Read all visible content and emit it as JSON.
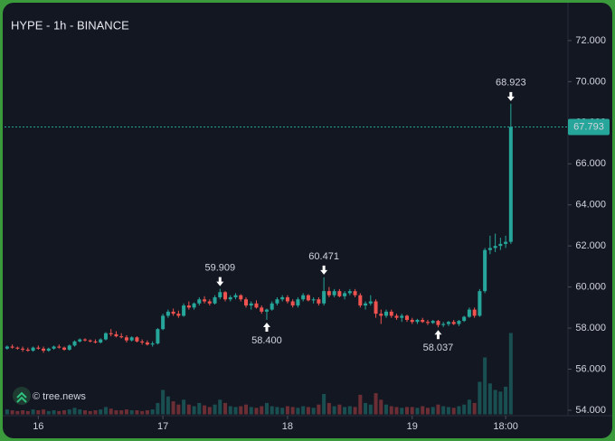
{
  "chart_data": {
    "type": "candlestick",
    "title": "HYPE - 1h - BINANCE",
    "watermark": "© tree.news",
    "up_color": "#26a69a",
    "down_color": "#ef5350",
    "ylim": [
      53.8,
      73.8
    ],
    "yticks": [
      {
        "value": 54,
        "label": "54.000"
      },
      {
        "value": 56,
        "label": "56.000"
      },
      {
        "value": 58,
        "label": "58.000"
      },
      {
        "value": 60,
        "label": "60.000"
      },
      {
        "value": 62,
        "label": "62.000"
      },
      {
        "value": 64,
        "label": "64.000"
      },
      {
        "value": 66,
        "label": "66.000"
      },
      {
        "value": 68,
        "label": "68.000"
      },
      {
        "value": 70,
        "label": "70.000"
      },
      {
        "value": 72,
        "label": "72.000"
      }
    ],
    "xlim": [
      -0.5,
      108
    ],
    "xticks": [
      {
        "value": 6,
        "label": "16"
      },
      {
        "value": 30,
        "label": "17"
      },
      {
        "value": 54,
        "label": "18"
      },
      {
        "value": 78,
        "label": "19"
      },
      {
        "value": 96,
        "label": "18:00"
      }
    ],
    "last": {
      "value": 67.793,
      "label": "67.793"
    },
    "annotations": [
      {
        "at": 41,
        "value": 59.909,
        "label": "59.909"
      },
      {
        "at": 50,
        "value": 58.4,
        "label": "58.400"
      },
      {
        "at": 61,
        "value": 60.471,
        "label": "60.471"
      },
      {
        "at": 83,
        "value": 58.037,
        "label": "58.037"
      },
      {
        "at": 97,
        "value": 68.923,
        "label": "68.923"
      }
    ],
    "ohlc": [
      [
        57.0,
        57.15,
        56.95,
        57.1
      ],
      [
        57.1,
        57.2,
        57.0,
        57.05
      ],
      [
        57.05,
        57.1,
        56.95,
        57.0
      ],
      [
        57.0,
        57.1,
        56.85,
        56.95
      ],
      [
        56.95,
        57.05,
        56.85,
        56.9
      ],
      [
        56.9,
        57.1,
        56.85,
        57.05
      ],
      [
        57.05,
        57.15,
        56.95,
        57.0
      ],
      [
        57.0,
        57.1,
        56.8,
        56.9
      ],
      [
        56.9,
        57.05,
        56.85,
        57.0
      ],
      [
        57.0,
        57.15,
        56.95,
        57.1
      ],
      [
        57.1,
        57.2,
        57.0,
        57.05
      ],
      [
        57.05,
        57.1,
        56.9,
        56.95
      ],
      [
        56.95,
        57.2,
        56.9,
        57.15
      ],
      [
        57.15,
        57.4,
        57.1,
        57.35
      ],
      [
        57.35,
        57.5,
        57.3,
        57.45
      ],
      [
        57.45,
        57.5,
        57.35,
        57.4
      ],
      [
        57.4,
        57.45,
        57.3,
        57.35
      ],
      [
        57.35,
        57.45,
        57.25,
        57.3
      ],
      [
        57.3,
        57.5,
        57.25,
        57.45
      ],
      [
        57.45,
        57.8,
        57.4,
        57.75
      ],
      [
        57.75,
        57.95,
        57.6,
        57.7
      ],
      [
        57.7,
        57.85,
        57.55,
        57.6
      ],
      [
        57.6,
        57.75,
        57.5,
        57.55
      ],
      [
        57.55,
        57.65,
        57.3,
        57.4
      ],
      [
        57.4,
        57.6,
        57.35,
        57.55
      ],
      [
        57.55,
        57.6,
        57.3,
        57.35
      ],
      [
        57.35,
        57.45,
        57.2,
        57.3
      ],
      [
        57.3,
        57.4,
        57.15,
        57.2
      ],
      [
        57.2,
        57.35,
        57.1,
        57.25
      ],
      [
        57.25,
        58.0,
        57.2,
        57.95
      ],
      [
        57.95,
        58.7,
        57.9,
        58.6
      ],
      [
        58.6,
        58.9,
        58.5,
        58.8
      ],
      [
        58.8,
        58.95,
        58.6,
        58.7
      ],
      [
        58.7,
        58.85,
        58.5,
        58.6
      ],
      [
        58.6,
        59.2,
        58.55,
        59.1
      ],
      [
        59.1,
        59.3,
        58.9,
        59.0
      ],
      [
        59.0,
        59.25,
        58.9,
        59.2
      ],
      [
        59.2,
        59.5,
        59.1,
        59.4
      ],
      [
        59.4,
        59.55,
        59.2,
        59.3
      ],
      [
        59.3,
        59.4,
        59.1,
        59.2
      ],
      [
        59.2,
        59.6,
        59.15,
        59.5
      ],
      [
        59.5,
        59.909,
        59.4,
        59.75
      ],
      [
        59.75,
        59.8,
        59.3,
        59.4
      ],
      [
        59.4,
        59.6,
        59.3,
        59.5
      ],
      [
        59.5,
        59.7,
        59.4,
        59.6
      ],
      [
        59.6,
        59.65,
        59.3,
        59.4
      ],
      [
        59.4,
        59.5,
        59.0,
        59.1
      ],
      [
        59.1,
        59.3,
        58.9,
        59.2
      ],
      [
        59.2,
        59.35,
        58.95,
        59.0
      ],
      [
        59.0,
        59.1,
        58.7,
        58.8
      ],
      [
        58.8,
        58.95,
        58.4,
        58.9
      ],
      [
        58.9,
        59.3,
        58.85,
        59.2
      ],
      [
        59.2,
        59.5,
        59.1,
        59.4
      ],
      [
        59.4,
        59.6,
        59.3,
        59.5
      ],
      [
        59.5,
        59.6,
        59.2,
        59.3
      ],
      [
        59.3,
        59.4,
        59.0,
        59.1
      ],
      [
        59.1,
        59.5,
        59.0,
        59.4
      ],
      [
        59.4,
        59.7,
        59.3,
        59.6
      ],
      [
        59.6,
        59.65,
        59.3,
        59.35
      ],
      [
        59.35,
        59.5,
        59.2,
        59.4
      ],
      [
        59.4,
        59.5,
        59.1,
        59.2
      ],
      [
        59.2,
        60.471,
        59.1,
        59.8
      ],
      [
        59.8,
        60.0,
        59.5,
        59.6
      ],
      [
        59.6,
        59.9,
        59.5,
        59.8
      ],
      [
        59.8,
        59.9,
        59.5,
        59.55
      ],
      [
        59.55,
        59.8,
        59.4,
        59.7
      ],
      [
        59.7,
        59.9,
        59.6,
        59.8
      ],
      [
        59.8,
        59.9,
        59.5,
        59.6
      ],
      [
        59.6,
        59.7,
        59.0,
        59.1
      ],
      [
        59.1,
        59.3,
        58.9,
        59.2
      ],
      [
        59.2,
        59.6,
        59.1,
        59.3
      ],
      [
        59.3,
        59.4,
        58.5,
        58.7
      ],
      [
        58.7,
        58.9,
        58.2,
        58.6
      ],
      [
        58.6,
        58.9,
        58.5,
        58.8
      ],
      [
        58.8,
        58.9,
        58.5,
        58.6
      ],
      [
        58.6,
        58.7,
        58.4,
        58.5
      ],
      [
        58.5,
        58.7,
        58.3,
        58.6
      ],
      [
        58.6,
        58.65,
        58.3,
        58.4
      ],
      [
        58.4,
        58.5,
        58.2,
        58.3
      ],
      [
        58.3,
        58.45,
        58.2,
        58.4
      ],
      [
        58.4,
        58.5,
        58.25,
        58.3
      ],
      [
        58.3,
        58.4,
        58.15,
        58.25
      ],
      [
        58.25,
        58.4,
        58.2,
        58.35
      ],
      [
        58.35,
        58.4,
        58.037,
        58.15
      ],
      [
        58.15,
        58.3,
        58.05,
        58.2
      ],
      [
        58.2,
        58.35,
        58.1,
        58.3
      ],
      [
        58.3,
        58.4,
        58.15,
        58.2
      ],
      [
        58.2,
        58.4,
        58.1,
        58.35
      ],
      [
        58.35,
        58.6,
        58.3,
        58.55
      ],
      [
        58.55,
        59.0,
        58.5,
        58.9
      ],
      [
        58.9,
        59.0,
        58.5,
        58.6
      ],
      [
        58.6,
        59.9,
        58.55,
        59.8
      ],
      [
        59.8,
        61.9,
        59.7,
        61.8
      ],
      [
        61.8,
        62.5,
        61.6,
        61.9
      ],
      [
        61.9,
        62.6,
        61.7,
        62.0
      ],
      [
        62.0,
        62.4,
        61.8,
        62.1
      ],
      [
        62.1,
        62.5,
        61.9,
        62.2
      ],
      [
        62.2,
        68.923,
        62.1,
        67.793
      ]
    ],
    "volume": [
      6,
      5,
      4,
      5,
      4,
      6,
      5,
      6,
      4,
      5,
      4,
      5,
      6,
      8,
      6,
      5,
      4,
      5,
      6,
      9,
      7,
      5,
      5,
      6,
      5,
      5,
      4,
      5,
      6,
      14,
      30,
      22,
      16,
      12,
      18,
      12,
      10,
      14,
      11,
      9,
      12,
      18,
      14,
      10,
      9,
      10,
      12,
      9,
      8,
      10,
      14,
      10,
      9,
      8,
      10,
      9,
      8,
      10,
      9,
      8,
      12,
      25,
      14,
      10,
      12,
      9,
      10,
      9,
      24,
      14,
      12,
      26,
      18,
      12,
      10,
      9,
      8,
      9,
      9,
      8,
      10,
      8,
      9,
      12,
      10,
      9,
      8,
      10,
      12,
      18,
      14,
      40,
      70,
      38,
      30,
      28,
      34,
      100
    ]
  }
}
